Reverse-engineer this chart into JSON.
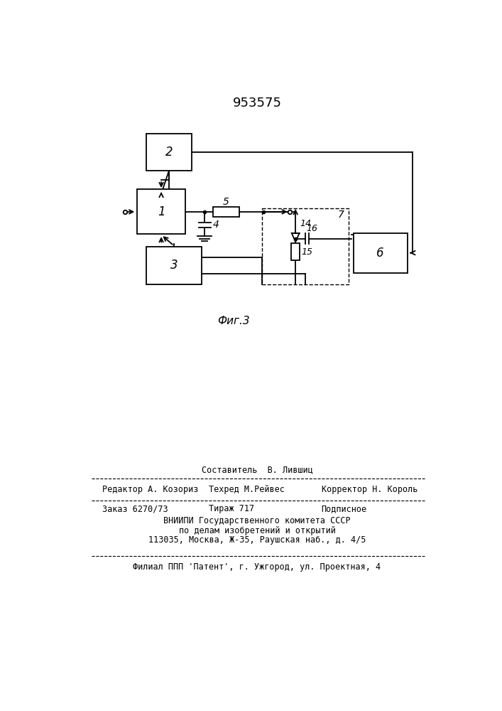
{
  "patent_number": "953575",
  "fig_label": "Фиг.3",
  "background_color": "#ffffff",
  "line_color": "#000000",
  "footer_line1": "Составитель  В. Лившиц",
  "footer_line2_left": "Редактор А. Козориз",
  "footer_line2_mid": "Техред М.Рейвес",
  "footer_line2_right": "Корректор Н. Король",
  "footer_line3_left": "Заказ 6270/73",
  "footer_line3_mid": "Тираж 717",
  "footer_line3_right": "Подписное",
  "footer_line4": "ВНИИПИ Государственного комитета СССР",
  "footer_line5": "по делам изобретений и открытий",
  "footer_line6": "113035, Москва, Ж-35, Раушская наб., д. 4/5",
  "footer_line7": "Филиал ППП 'Патент', г. Ужгород, ул. Проектная, 4"
}
